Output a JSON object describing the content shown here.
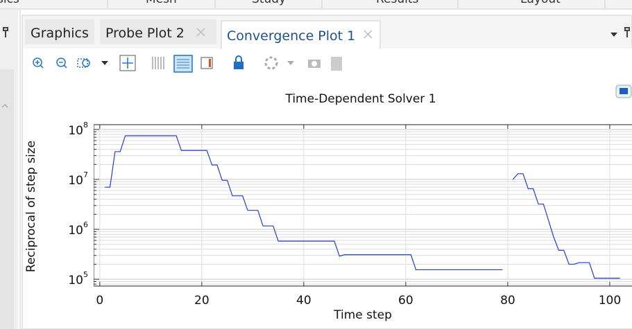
{
  "top_tabs": [
    "sics",
    "Mesh",
    "Study",
    "Results",
    "Layout"
  ],
  "tabs": [
    "Graphics",
    "Probe Plot 2",
    "Convergence Plot 1"
  ],
  "chart_data": {
    "type": "line",
    "title": "Time-Dependent Solver 1",
    "x_label": "Time step",
    "y_label": "Reciprocal of step size",
    "color": "#1f3fd0",
    "log_y": true,
    "grid": true,
    "x": [
      1,
      2,
      3,
      4,
      5,
      6,
      7,
      8,
      9,
      10,
      11,
      12,
      13,
      14,
      15,
      16,
      17,
      18,
      19,
      20,
      21,
      22,
      23,
      24,
      25,
      26,
      27,
      28,
      29,
      30,
      31,
      32,
      33,
      34,
      35,
      36,
      37,
      38,
      39,
      40,
      41,
      42,
      43,
      44,
      45,
      46,
      47,
      48,
      49,
      50,
      51,
      52,
      53,
      54,
      55,
      56,
      57,
      58,
      59,
      60,
      61,
      62,
      63,
      64,
      65,
      66,
      67,
      68,
      69,
      70,
      71,
      72,
      73,
      74,
      75,
      76,
      77,
      78,
      79,
      80,
      81,
      82,
      83,
      84,
      85,
      86,
      87,
      88,
      89,
      90,
      91,
      92,
      93,
      94,
      95,
      96,
      97,
      98,
      99,
      100,
      101,
      102
    ],
    "values": [
      7000000,
      7000000,
      36000000,
      36000000,
      75000000,
      75000000,
      75000000,
      75000000,
      75000000,
      75000000,
      75000000,
      75000000,
      75000000,
      75000000,
      75000000,
      38000000,
      38000000,
      38000000,
      38000000,
      38000000,
      38000000,
      19500000,
      19500000,
      9600000,
      9600000,
      4700000,
      4700000,
      4700000,
      2400000,
      2400000,
      2400000,
      1170000,
      1170000,
      1170000,
      580000,
      580000,
      580000,
      580000,
      580000,
      580000,
      580000,
      580000,
      580000,
      580000,
      580000,
      580000,
      290000,
      310000,
      310000,
      310000,
      310000,
      310000,
      310000,
      310000,
      310000,
      310000,
      310000,
      310000,
      310000,
      310000,
      310000,
      155000,
      155000,
      155000,
      155000,
      155000,
      155000,
      155000,
      155000,
      155000,
      155000,
      155000,
      155000,
      155000,
      155000,
      155000,
      155000,
      155000,
      155000,
      null,
      10000000,
      13000000,
      13000000,
      6500000,
      6500000,
      3200000,
      3200000,
      1500000,
      700000,
      380000,
      380000,
      200000,
      200000,
      215000,
      215000,
      215000,
      105000,
      105000,
      105000,
      105000,
      105000,
      105000
    ],
    "xlim": [
      -1.2,
      104.5
    ],
    "xticks": [
      0,
      20,
      40,
      60,
      80,
      100
    ],
    "ylim": [
      73000,
      125000000
    ],
    "yticks": [
      {
        "value": 100000,
        "label": "10",
        "exponent": "5"
      },
      {
        "value": 1000000,
        "label": "10",
        "exponent": "6"
      },
      {
        "value": 10000000,
        "label": "10",
        "exponent": "7"
      },
      {
        "value": 100000000,
        "label": "10",
        "exponent": "8"
      }
    ],
    "yminorticks": [
      80000,
      90000,
      200000,
      300000,
      400000,
      500000,
      600000,
      700000,
      800000,
      900000,
      2000000,
      3000000,
      4000000,
      5000000,
      6000000,
      7000000,
      8000000,
      9000000,
      20000000,
      30000000,
      40000000,
      50000000,
      60000000,
      70000000,
      80000000,
      90000000
    ]
  }
}
